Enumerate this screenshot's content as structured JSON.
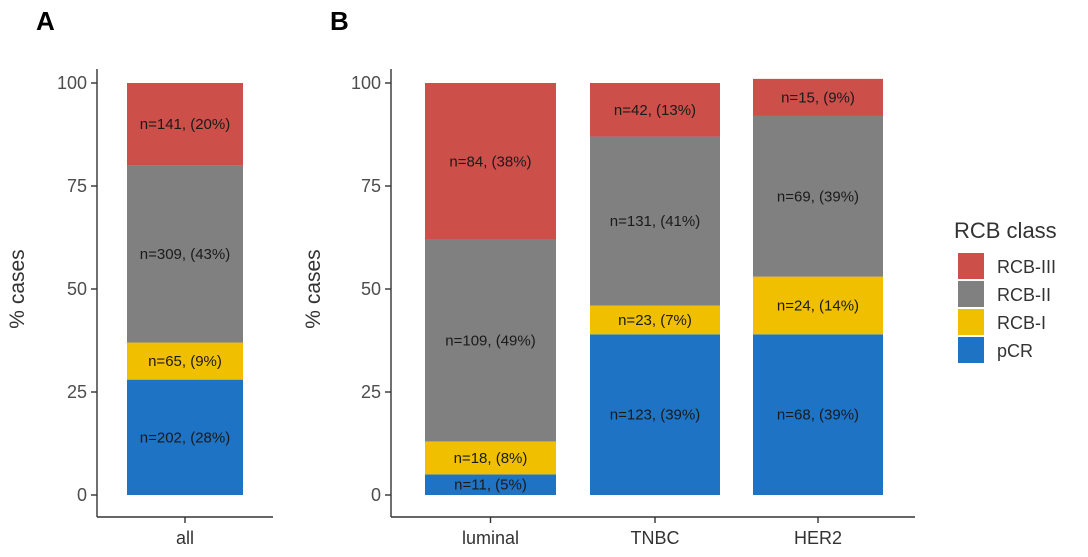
{
  "panels": {
    "a": {
      "letter": "A"
    },
    "b": {
      "letter": "B"
    }
  },
  "legend": {
    "title": "RCB class",
    "items": [
      {
        "label": "RCB-III",
        "color": "#cc4f4a"
      },
      {
        "label": "RCB-II",
        "color": "#808080"
      },
      {
        "label": "RCB-I",
        "color": "#f0c000"
      },
      {
        "label": "pCR",
        "color": "#1f73c4"
      }
    ]
  },
  "chart_data": [
    {
      "type": "bar",
      "stacked": true,
      "panel": "A",
      "ylabel": "% cases",
      "xlabel": "",
      "ylim": [
        0,
        100
      ],
      "yticks": [
        0,
        25,
        50,
        75,
        100
      ],
      "categories": [
        "all"
      ],
      "series": [
        {
          "name": "pCR",
          "color": "#1f73c4",
          "values": [
            28
          ],
          "labels": [
            "n=202, (28%)"
          ]
        },
        {
          "name": "RCB-I",
          "color": "#f0c000",
          "values": [
            9
          ],
          "labels": [
            "n=65, (9%)"
          ]
        },
        {
          "name": "RCB-II",
          "color": "#808080",
          "values": [
            43
          ],
          "labels": [
            "n=309, (43%)"
          ]
        },
        {
          "name": "RCB-III",
          "color": "#cc4f4a",
          "values": [
            20
          ],
          "labels": [
            "n=141, (20%)"
          ]
        }
      ]
    },
    {
      "type": "bar",
      "stacked": true,
      "panel": "B",
      "ylabel": "% cases",
      "xlabel": "",
      "ylim": [
        0,
        100
      ],
      "yticks": [
        0,
        25,
        50,
        75,
        100
      ],
      "categories": [
        "luminal",
        "TNBC",
        "HER2"
      ],
      "series": [
        {
          "name": "pCR",
          "color": "#1f73c4",
          "values": [
            5,
            39,
            39
          ],
          "labels": [
            "n=11, (5%)",
            "n=123, (39%)",
            "n=68, (39%)"
          ]
        },
        {
          "name": "RCB-I",
          "color": "#f0c000",
          "values": [
            8,
            7,
            14
          ],
          "labels": [
            "n=18, (8%)",
            "n=23, (7%)",
            "n=24, (14%)"
          ]
        },
        {
          "name": "RCB-II",
          "color": "#808080",
          "values": [
            49,
            41,
            39
          ],
          "labels": [
            "n=109, (49%)",
            "n=131, (41%)",
            "n=69, (39%)"
          ]
        },
        {
          "name": "RCB-III",
          "color": "#cc4f4a",
          "values": [
            38,
            13,
            9
          ],
          "labels": [
            "n=84, (38%)",
            "n=42, (13%)",
            "n=15, (9%)"
          ]
        }
      ]
    }
  ]
}
